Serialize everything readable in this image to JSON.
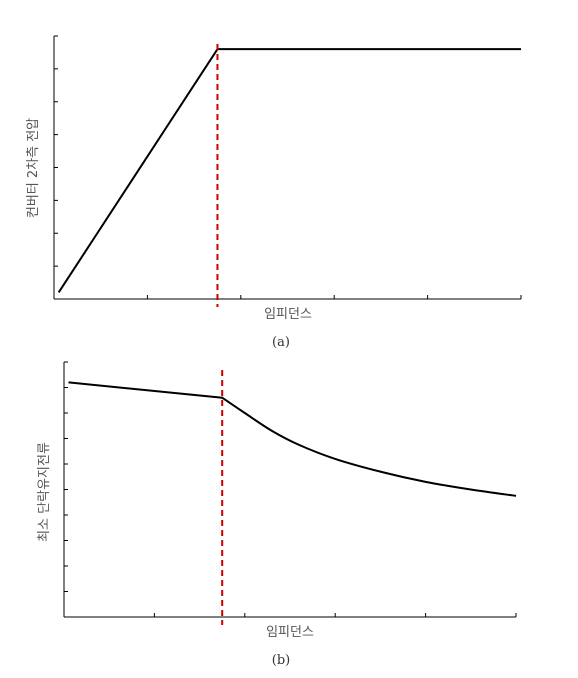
{
  "chart_data": [
    {
      "id": "a",
      "type": "line",
      "caption": "(a)",
      "xlabel": "임피던스",
      "ylabel": "컨버터 2차측 전압",
      "xlim": [
        0,
        10
      ],
      "ylim": [
        0,
        8
      ],
      "y_ticks": [
        0,
        1,
        2,
        3,
        4,
        5,
        6,
        7,
        8
      ],
      "x_ticks": [
        0,
        2,
        4,
        6,
        8,
        10
      ],
      "series": [
        {
          "points": [
            [
              0.1,
              0.2
            ],
            [
              3.5,
              7.6
            ],
            [
              10,
              7.6
            ]
          ],
          "color": "#000000"
        }
      ],
      "vline": {
        "x": 3.5,
        "color": "#cc0000",
        "style": "dashed"
      }
    },
    {
      "id": "b",
      "type": "line",
      "caption": "(b)",
      "xlabel": "임피던스",
      "ylabel": "최소 단락유지전류",
      "xlim": [
        0,
        10
      ],
      "ylim": [
        0,
        10
      ],
      "y_ticks": [
        0,
        1,
        2,
        3,
        4,
        5,
        6,
        7,
        8,
        9,
        10
      ],
      "x_ticks": [
        0,
        2,
        4,
        6,
        8,
        10
      ],
      "series": [
        {
          "points": [
            [
              0.1,
              9.2
            ],
            [
              3.5,
              8.6
            ],
            [
              4.0,
              8.0
            ],
            [
              4.6,
              7.3
            ],
            [
              5.2,
              6.75
            ],
            [
              6.0,
              6.2
            ],
            [
              7.0,
              5.7
            ],
            [
              8.0,
              5.3
            ],
            [
              9.0,
              5.0
            ],
            [
              10.0,
              4.75
            ]
          ],
          "color": "#000000"
        }
      ],
      "vline": {
        "x": 3.5,
        "color": "#cc0000",
        "style": "dashed"
      }
    }
  ]
}
